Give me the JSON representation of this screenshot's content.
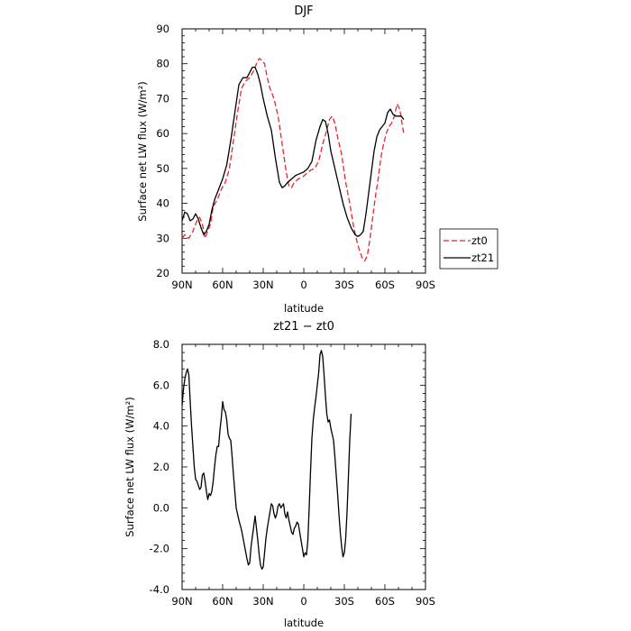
{
  "chart_data": [
    {
      "type": "line",
      "title": "DJF",
      "xlabel": "latitude",
      "ylabel": "Surface net LW flux (W/m²)",
      "xlim": [
        90,
        -90
      ],
      "ylim": [
        20,
        90
      ],
      "x_tick_values": [
        90,
        60,
        30,
        0,
        -30,
        -60,
        -90
      ],
      "x_tick_labels": [
        "90N",
        "60N",
        "30N",
        "0",
        "30S",
        "60S",
        "90S"
      ],
      "y_tick_values": [
        20,
        30,
        40,
        50,
        60,
        70,
        80,
        90
      ],
      "y_tick_labels": [
        "20",
        "30",
        "40",
        "50",
        "60",
        "70",
        "80",
        "90"
      ],
      "legend": "right",
      "series": [
        {
          "name": "zt0",
          "color": "#e8262a",
          "style": "dashed",
          "points": [
            [
              90,
              30
            ],
            [
              88,
              31
            ],
            [
              85,
              30
            ],
            [
              82,
              32
            ],
            [
              79,
              35
            ],
            [
              77,
              36
            ],
            [
              75,
              34
            ],
            [
              73,
              30
            ],
            [
              71,
              32
            ],
            [
              69,
              34
            ],
            [
              67,
              39
            ],
            [
              64,
              41
            ],
            [
              61,
              44
            ],
            [
              58,
              46
            ],
            [
              55,
              50
            ],
            [
              52,
              58
            ],
            [
              49,
              66
            ],
            [
              46,
              73
            ],
            [
              43,
              75
            ],
            [
              40,
              76
            ],
            [
              37,
              78
            ],
            [
              35,
              80
            ],
            [
              33,
              81.5
            ],
            [
              31,
              81
            ],
            [
              29,
              80
            ],
            [
              27,
              76
            ],
            [
              25,
              73
            ],
            [
              22,
              70
            ],
            [
              19,
              65
            ],
            [
              16,
              57
            ],
            [
              13,
              49
            ],
            [
              11,
              45
            ],
            [
              9,
              44.5
            ],
            [
              7,
              46
            ],
            [
              4,
              47
            ],
            [
              1,
              47.5
            ],
            [
              -2,
              48.5
            ],
            [
              -5,
              49.5
            ],
            [
              -8,
              50
            ],
            [
              -11,
              52
            ],
            [
              -14,
              57
            ],
            [
              -17,
              61
            ],
            [
              -19,
              64
            ],
            [
              -21,
              65
            ],
            [
              -23,
              63
            ],
            [
              -25,
              59
            ],
            [
              -28,
              54
            ],
            [
              -31,
              46
            ],
            [
              -34,
              40
            ],
            [
              -37,
              33
            ],
            [
              -40,
              28
            ],
            [
              -43,
              24.5
            ],
            [
              -45,
              23.5
            ],
            [
              -47,
              25
            ],
            [
              -49,
              30
            ],
            [
              -51,
              36
            ],
            [
              -53,
              42
            ],
            [
              -55,
              47
            ],
            [
              -57,
              53
            ],
            [
              -59,
              57
            ],
            [
              -61,
              60
            ],
            [
              -63,
              62
            ],
            [
              -65,
              63
            ],
            [
              -67,
              65
            ],
            [
              -69,
              68.5
            ],
            [
              -71,
              67
            ],
            [
              -73,
              62
            ],
            [
              -74,
              60
            ]
          ]
        },
        {
          "name": "zt21",
          "color": "#000000",
          "style": "solid",
          "points": [
            [
              90,
              35
            ],
            [
              88,
              37.5
            ],
            [
              86,
              37
            ],
            [
              84,
              35
            ],
            [
              82,
              35.5
            ],
            [
              80,
              37
            ],
            [
              78,
              35.5
            ],
            [
              76,
              33
            ],
            [
              74,
              31
            ],
            [
              72,
              32
            ],
            [
              70,
              34
            ],
            [
              68,
              38
            ],
            [
              66,
              41
            ],
            [
              63,
              44
            ],
            [
              60,
              47
            ],
            [
              57,
              51
            ],
            [
              54,
              58
            ],
            [
              51,
              66
            ],
            [
              48,
              74
            ],
            [
              45,
              76
            ],
            [
              42,
              76
            ],
            [
              40,
              77.5
            ],
            [
              38,
              79
            ],
            [
              36,
              79
            ],
            [
              34,
              77
            ],
            [
              32,
              74
            ],
            [
              30,
              70
            ],
            [
              27,
              65
            ],
            [
              24,
              61
            ],
            [
              21,
              53
            ],
            [
              18,
              46
            ],
            [
              16,
              44.5
            ],
            [
              14,
              45
            ],
            [
              12,
              46
            ],
            [
              9,
              47
            ],
            [
              6,
              48
            ],
            [
              3,
              48.5
            ],
            [
              0,
              49
            ],
            [
              -3,
              50
            ],
            [
              -6,
              52
            ],
            [
              -9,
              58
            ],
            [
              -12,
              62
            ],
            [
              -14,
              64
            ],
            [
              -16,
              63.5
            ],
            [
              -18,
              60
            ],
            [
              -20,
              55
            ],
            [
              -23,
              50
            ],
            [
              -26,
              45
            ],
            [
              -29,
              40
            ],
            [
              -32,
              36
            ],
            [
              -35,
              33
            ],
            [
              -38,
              31
            ],
            [
              -40,
              30.5
            ],
            [
              -42,
              31
            ],
            [
              -44,
              32
            ],
            [
              -46,
              37
            ],
            [
              -48,
              43
            ],
            [
              -50,
              49
            ],
            [
              -52,
              55
            ],
            [
              -54,
              59
            ],
            [
              -56,
              61
            ],
            [
              -58,
              62
            ],
            [
              -60,
              63
            ],
            [
              -62,
              66
            ],
            [
              -64,
              67
            ],
            [
              -66,
              65.5
            ],
            [
              -68,
              65
            ],
            [
              -70,
              65
            ],
            [
              -72,
              65
            ],
            [
              -74,
              64
            ]
          ]
        }
      ]
    },
    {
      "type": "line",
      "title": "zt21 − zt0",
      "xlabel": "latitude",
      "ylabel": "Surface net LW flux (W/m²)",
      "xlim": [
        90,
        -90
      ],
      "ylim": [
        -4,
        8
      ],
      "x_tick_values": [
        90,
        60,
        30,
        0,
        -30,
        -60,
        -90
      ],
      "x_tick_labels": [
        "90N",
        "60N",
        "30N",
        "0",
        "30S",
        "60S",
        "90S"
      ],
      "y_tick_values": [
        -4,
        -2,
        0,
        2,
        4,
        6,
        8
      ],
      "y_tick_labels": [
        "-4.0",
        "-2.0",
        "0.0",
        "2.0",
        "4.0",
        "6.0",
        "8.0"
      ],
      "series": [
        {
          "color": "#000000",
          "style": "solid",
          "points": [
            [
              90,
              5.0
            ],
            [
              89,
              5.8
            ],
            [
              88,
              6.3
            ],
            [
              87,
              6.6
            ],
            [
              86,
              6.8
            ],
            [
              85,
              6.5
            ],
            [
              84,
              5.2
            ],
            [
              83,
              4.0
            ],
            [
              82,
              3.0
            ],
            [
              81,
              2.0
            ],
            [
              80,
              1.4
            ],
            [
              79,
              1.3
            ],
            [
              78,
              1.1
            ],
            [
              77,
              0.9
            ],
            [
              76,
              1.0
            ],
            [
              75,
              1.6
            ],
            [
              74,
              1.7
            ],
            [
              73,
              1.3
            ],
            [
              72,
              0.8
            ],
            [
              71,
              0.4
            ],
            [
              70,
              0.7
            ],
            [
              69,
              0.6
            ],
            [
              68,
              0.8
            ],
            [
              67,
              1.3
            ],
            [
              66,
              2.0
            ],
            [
              65,
              2.6
            ],
            [
              64,
              3.0
            ],
            [
              63,
              3.0
            ],
            [
              62,
              3.8
            ],
            [
              61,
              4.4
            ],
            [
              60,
              5.2
            ],
            [
              59,
              4.8
            ],
            [
              58,
              4.7
            ],
            [
              57,
              4.3
            ],
            [
              56,
              3.6
            ],
            [
              55,
              3.4
            ],
            [
              54,
              3.3
            ],
            [
              53,
              2.5
            ],
            [
              52,
              1.6
            ],
            [
              51,
              0.8
            ],
            [
              50,
              0.0
            ],
            [
              48,
              -0.6
            ],
            [
              46,
              -1.1
            ],
            [
              44,
              -1.8
            ],
            [
              42,
              -2.5
            ],
            [
              41,
              -2.8
            ],
            [
              40,
              -2.7
            ],
            [
              39,
              -1.9
            ],
            [
              37,
              -0.9
            ],
            [
              36,
              -0.4
            ],
            [
              35,
              -1.0
            ],
            [
              34,
              -1.6
            ],
            [
              33,
              -2.3
            ],
            [
              32,
              -2.8
            ],
            [
              31,
              -3.0
            ],
            [
              30,
              -2.9
            ],
            [
              29,
              -2.2
            ],
            [
              28,
              -1.5
            ],
            [
              27,
              -1.0
            ],
            [
              26,
              -0.6
            ],
            [
              25,
              -0.2
            ],
            [
              24,
              0.2
            ],
            [
              23,
              0.1
            ],
            [
              22,
              -0.3
            ],
            [
              21,
              -0.5
            ],
            [
              20,
              -0.3
            ],
            [
              19,
              0.1
            ],
            [
              18,
              0.2
            ],
            [
              17,
              0.0
            ],
            [
              16,
              0.1
            ],
            [
              15,
              0.2
            ],
            [
              14,
              -0.3
            ],
            [
              13,
              -0.5
            ],
            [
              12,
              -0.2
            ],
            [
              11,
              -0.6
            ],
            [
              10,
              -0.9
            ],
            [
              9,
              -1.2
            ],
            [
              8,
              -1.3
            ],
            [
              7,
              -1.0
            ],
            [
              6,
              -0.9
            ],
            [
              5,
              -0.7
            ],
            [
              4,
              -0.8
            ],
            [
              3,
              -1.2
            ],
            [
              2,
              -1.6
            ],
            [
              1,
              -2.0
            ],
            [
              0,
              -2.4
            ],
            [
              -1,
              -2.2
            ],
            [
              -2,
              -2.3
            ],
            [
              -3,
              -1.6
            ],
            [
              -4,
              0.0
            ],
            [
              -5,
              1.8
            ],
            [
              -6,
              3.4
            ],
            [
              -7,
              4.3
            ],
            [
              -8,
              4.9
            ],
            [
              -9,
              5.4
            ],
            [
              -10,
              6.0
            ],
            [
              -11,
              6.6
            ],
            [
              -12,
              7.5
            ],
            [
              -13,
              7.7
            ],
            [
              -14,
              7.4
            ],
            [
              -15,
              6.5
            ],
            [
              -16,
              5.5
            ],
            [
              -17,
              4.6
            ],
            [
              -18,
              4.2
            ],
            [
              -19,
              4.3
            ],
            [
              -20,
              3.9
            ],
            [
              -21,
              3.6
            ],
            [
              -22,
              3.3
            ],
            [
              -23,
              2.5
            ],
            [
              -24,
              1.6
            ],
            [
              -25,
              0.7
            ],
            [
              -26,
              -0.3
            ],
            [
              -27,
              -1.2
            ],
            [
              -28,
              -1.9
            ],
            [
              -29,
              -2.4
            ],
            [
              -30,
              -2.2
            ],
            [
              -31,
              -1.5
            ],
            [
              -32,
              -0.2
            ],
            [
              -33,
              1.5
            ],
            [
              -34,
              3.3
            ],
            [
              -35,
              4.6
            ]
          ]
        }
      ]
    }
  ]
}
